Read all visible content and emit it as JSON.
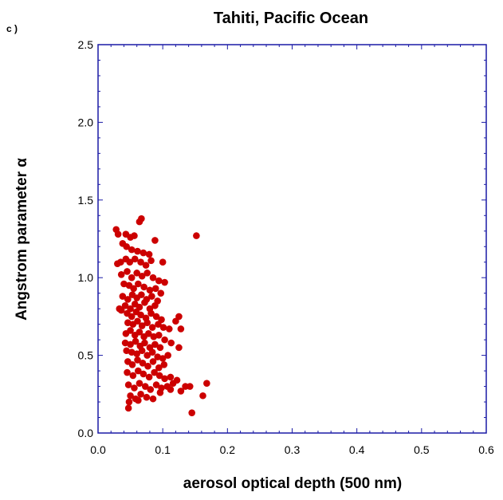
{
  "panel_label": "c )",
  "chart_data": {
    "type": "scatter",
    "title": "Tahiti, Pacific Ocean",
    "xlabel": "aerosol optical depth (500 nm)",
    "ylabel": "Angstrom parameter  α",
    "xlim": [
      0.0,
      0.6
    ],
    "ylim": [
      0.0,
      2.5
    ],
    "xticks": [
      "0.0",
      "0.1",
      "0.2",
      "0.3",
      "0.4",
      "0.5",
      "0.6"
    ],
    "yticks": [
      "0.0",
      "0.5",
      "1.0",
      "1.5",
      "2.0",
      "2.5"
    ],
    "grid": false,
    "marker_color": "#cc0000",
    "frame_color": "#1a1aa6",
    "points": [
      [
        0.028,
        1.31
      ],
      [
        0.031,
        1.28
      ],
      [
        0.038,
        1.22
      ],
      [
        0.043,
        1.28
      ],
      [
        0.05,
        1.26
      ],
      [
        0.056,
        1.27
      ],
      [
        0.064,
        1.36
      ],
      [
        0.067,
        1.38
      ],
      [
        0.044,
        1.2
      ],
      [
        0.052,
        1.18
      ],
      [
        0.061,
        1.17
      ],
      [
        0.07,
        1.16
      ],
      [
        0.079,
        1.15
      ],
      [
        0.088,
        1.24
      ],
      [
        0.152,
        1.27
      ],
      [
        0.035,
        1.1
      ],
      [
        0.043,
        1.12
      ],
      [
        0.049,
        1.1
      ],
      [
        0.057,
        1.12
      ],
      [
        0.066,
        1.1
      ],
      [
        0.074,
        1.08
      ],
      [
        0.082,
        1.11
      ],
      [
        0.1,
        1.1
      ],
      [
        0.03,
        1.09
      ],
      [
        0.036,
        1.02
      ],
      [
        0.045,
        1.04
      ],
      [
        0.052,
        1.0
      ],
      [
        0.06,
        1.03
      ],
      [
        0.068,
        1.01
      ],
      [
        0.076,
        1.03
      ],
      [
        0.085,
        1.0
      ],
      [
        0.094,
        0.98
      ],
      [
        0.103,
        0.97
      ],
      [
        0.04,
        0.96
      ],
      [
        0.048,
        0.95
      ],
      [
        0.055,
        0.93
      ],
      [
        0.062,
        0.96
      ],
      [
        0.071,
        0.94
      ],
      [
        0.08,
        0.92
      ],
      [
        0.089,
        0.93
      ],
      [
        0.097,
        0.9
      ],
      [
        0.038,
        0.88
      ],
      [
        0.046,
        0.86
      ],
      [
        0.053,
        0.89
      ],
      [
        0.06,
        0.87
      ],
      [
        0.067,
        0.89
      ],
      [
        0.075,
        0.86
      ],
      [
        0.083,
        0.88
      ],
      [
        0.092,
        0.85
      ],
      [
        0.042,
        0.82
      ],
      [
        0.05,
        0.8
      ],
      [
        0.057,
        0.83
      ],
      [
        0.064,
        0.81
      ],
      [
        0.072,
        0.84
      ],
      [
        0.08,
        0.8
      ],
      [
        0.088,
        0.82
      ],
      [
        0.033,
        0.8
      ],
      [
        0.036,
        0.79
      ],
      [
        0.045,
        0.77
      ],
      [
        0.052,
        0.75
      ],
      [
        0.059,
        0.78
      ],
      [
        0.066,
        0.76
      ],
      [
        0.074,
        0.74
      ],
      [
        0.082,
        0.77
      ],
      [
        0.09,
        0.75
      ],
      [
        0.098,
        0.73
      ],
      [
        0.125,
        0.75
      ],
      [
        0.046,
        0.71
      ],
      [
        0.054,
        0.7
      ],
      [
        0.061,
        0.72
      ],
      [
        0.068,
        0.69
      ],
      [
        0.076,
        0.71
      ],
      [
        0.084,
        0.68
      ],
      [
        0.093,
        0.7
      ],
      [
        0.101,
        0.68
      ],
      [
        0.11,
        0.67
      ],
      [
        0.12,
        0.72
      ],
      [
        0.128,
        0.67
      ],
      [
        0.043,
        0.64
      ],
      [
        0.05,
        0.66
      ],
      [
        0.057,
        0.63
      ],
      [
        0.064,
        0.65
      ],
      [
        0.071,
        0.62
      ],
      [
        0.078,
        0.64
      ],
      [
        0.086,
        0.62
      ],
      [
        0.094,
        0.63
      ],
      [
        0.103,
        0.6
      ],
      [
        0.113,
        0.58
      ],
      [
        0.042,
        0.58
      ],
      [
        0.05,
        0.57
      ],
      [
        0.058,
        0.59
      ],
      [
        0.065,
        0.56
      ],
      [
        0.072,
        0.58
      ],
      [
        0.08,
        0.55
      ],
      [
        0.088,
        0.57
      ],
      [
        0.096,
        0.55
      ],
      [
        0.044,
        0.53
      ],
      [
        0.052,
        0.52
      ],
      [
        0.06,
        0.51
      ],
      [
        0.068,
        0.53
      ],
      [
        0.076,
        0.5
      ],
      [
        0.084,
        0.52
      ],
      [
        0.092,
        0.49
      ],
      [
        0.1,
        0.48
      ],
      [
        0.108,
        0.5
      ],
      [
        0.125,
        0.55
      ],
      [
        0.046,
        0.46
      ],
      [
        0.053,
        0.44
      ],
      [
        0.061,
        0.47
      ],
      [
        0.069,
        0.45
      ],
      [
        0.077,
        0.43
      ],
      [
        0.085,
        0.46
      ],
      [
        0.094,
        0.42
      ],
      [
        0.102,
        0.44
      ],
      [
        0.045,
        0.39
      ],
      [
        0.054,
        0.37
      ],
      [
        0.062,
        0.4
      ],
      [
        0.07,
        0.38
      ],
      [
        0.079,
        0.36
      ],
      [
        0.087,
        0.39
      ],
      [
        0.095,
        0.37
      ],
      [
        0.103,
        0.35
      ],
      [
        0.112,
        0.36
      ],
      [
        0.122,
        0.34
      ],
      [
        0.047,
        0.31
      ],
      [
        0.056,
        0.29
      ],
      [
        0.064,
        0.32
      ],
      [
        0.073,
        0.3
      ],
      [
        0.081,
        0.28
      ],
      [
        0.09,
        0.31
      ],
      [
        0.098,
        0.29
      ],
      [
        0.107,
        0.3
      ],
      [
        0.116,
        0.32
      ],
      [
        0.135,
        0.3
      ],
      [
        0.142,
        0.3
      ],
      [
        0.168,
        0.32
      ],
      [
        0.05,
        0.24
      ],
      [
        0.058,
        0.22
      ],
      [
        0.066,
        0.25
      ],
      [
        0.075,
        0.23
      ],
      [
        0.085,
        0.22
      ],
      [
        0.096,
        0.26
      ],
      [
        0.112,
        0.28
      ],
      [
        0.128,
        0.27
      ],
      [
        0.162,
        0.24
      ],
      [
        0.048,
        0.2
      ],
      [
        0.062,
        0.21
      ],
      [
        0.047,
        0.16
      ],
      [
        0.145,
        0.13
      ]
    ]
  }
}
